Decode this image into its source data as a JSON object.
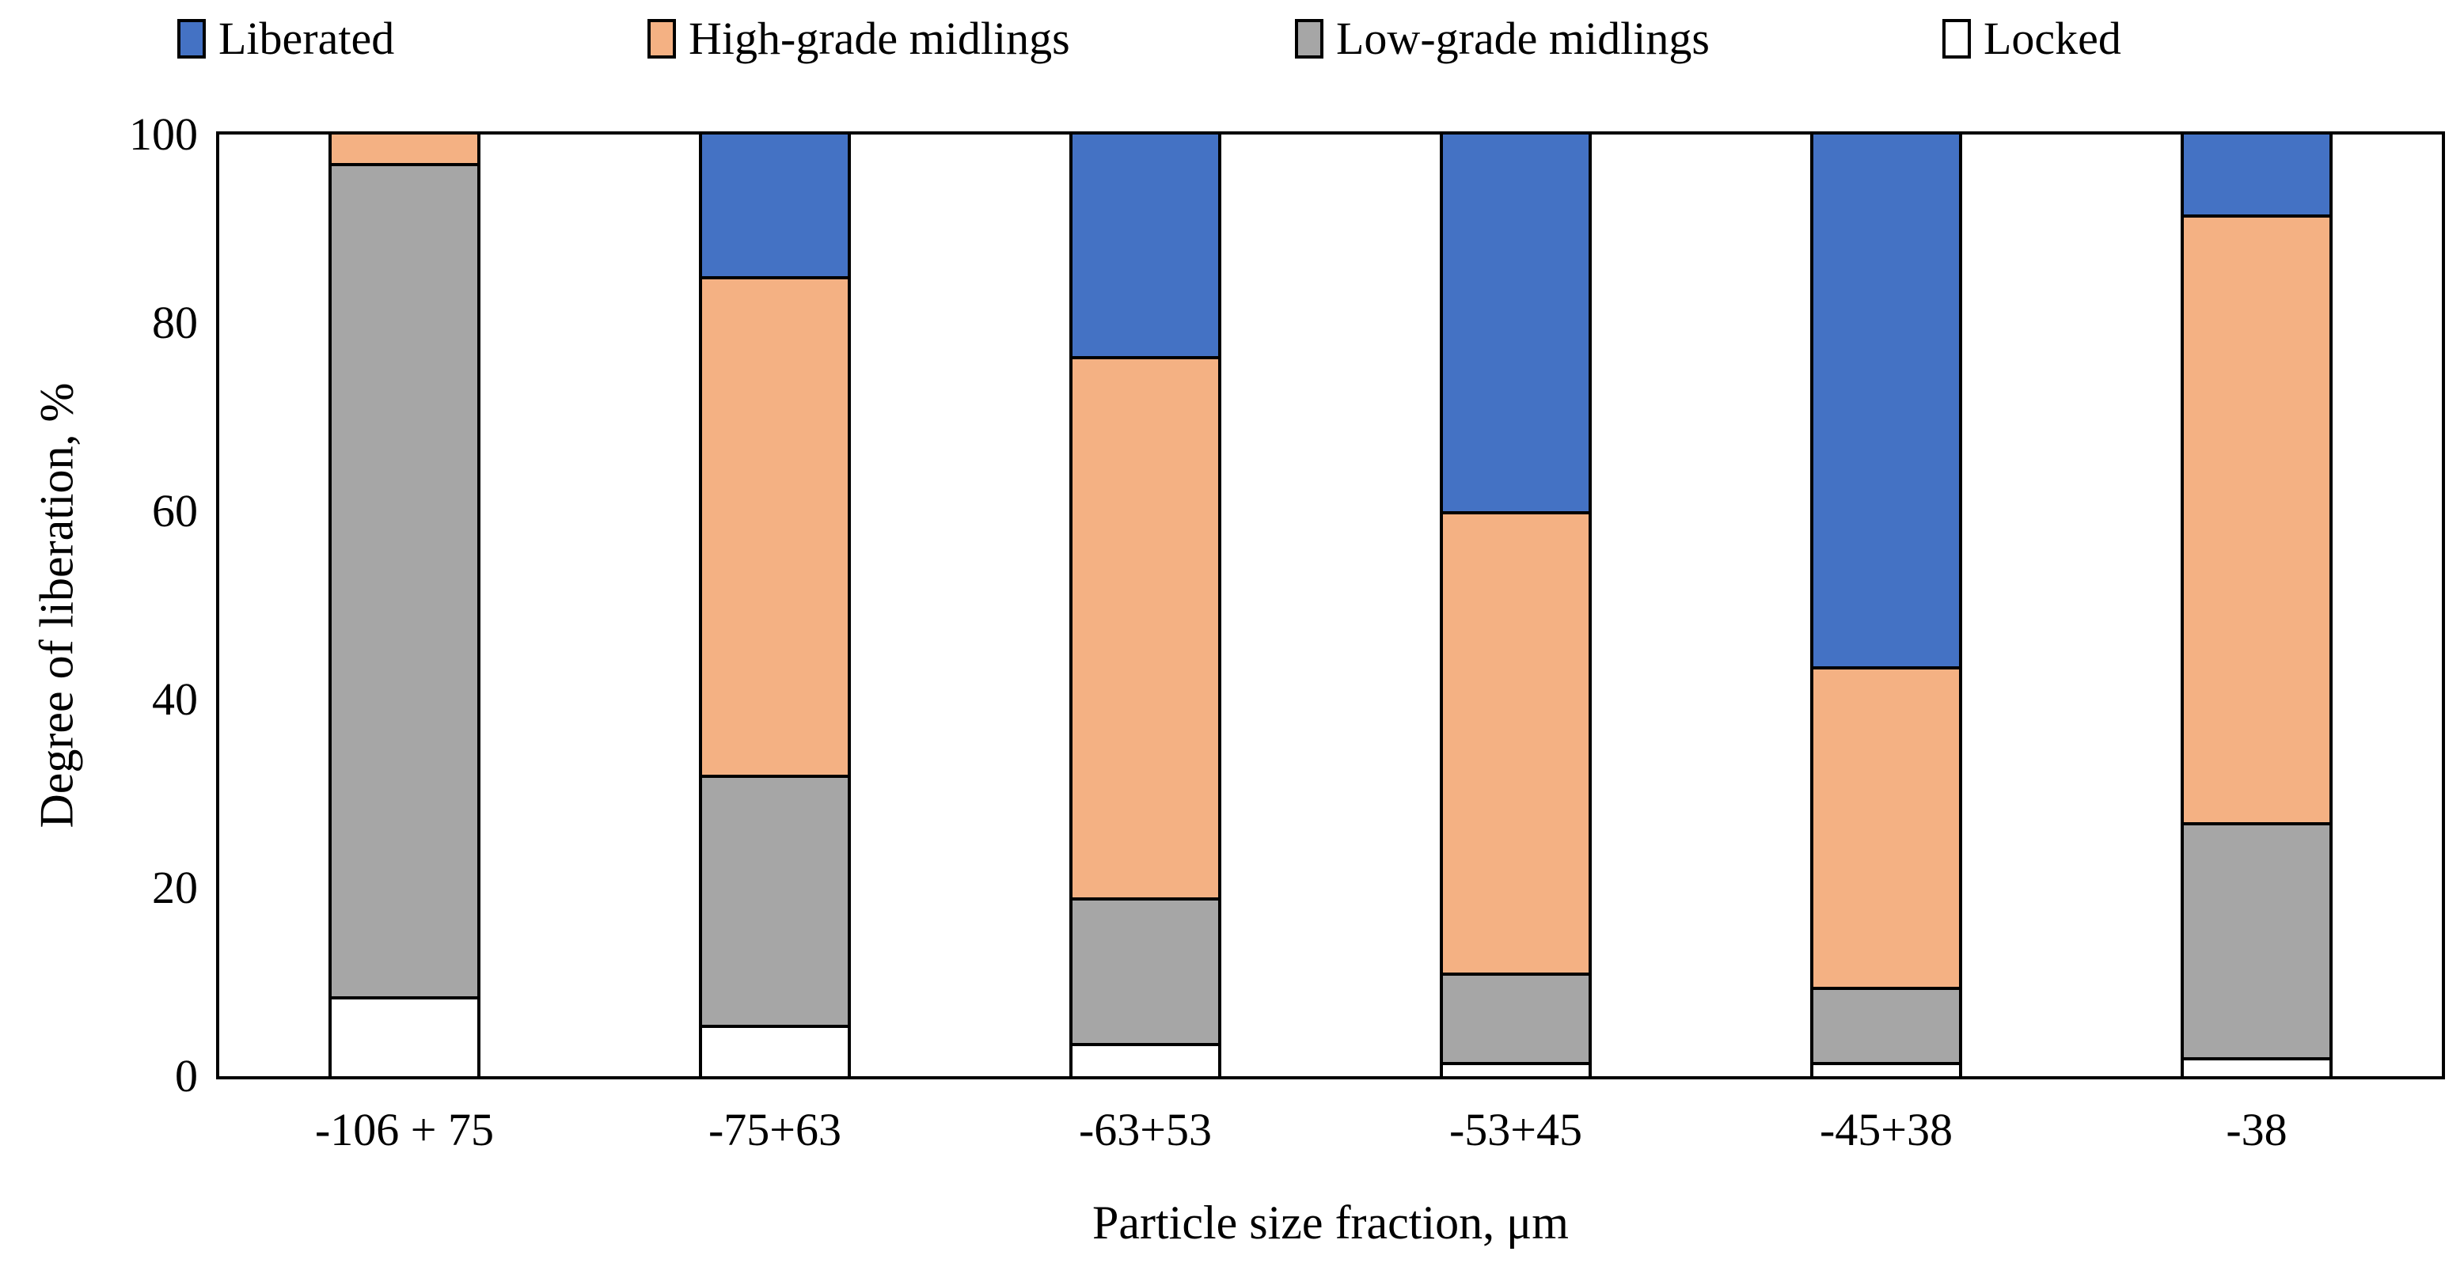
{
  "chart_data": {
    "type": "bar",
    "stacked": true,
    "title": "",
    "xlabel": "Particle size fraction, μm",
    "ylabel": "Degree of liberation, %",
    "ylim": [
      0,
      100
    ],
    "yticks": [
      0,
      20,
      40,
      60,
      80,
      100
    ],
    "grid": false,
    "legend_position": "top",
    "bar_outline_color": "#000000",
    "categories": [
      "-106 + 75",
      "-75+63",
      "-63+53",
      "-53+45",
      "-45+38",
      "-38"
    ],
    "series": [
      {
        "name": "Locked",
        "color": "#FFFFFF",
        "values": [
          8.5,
          5.5,
          3.5,
          1.5,
          1.5,
          2.0
        ]
      },
      {
        "name": "Low-grade midlings",
        "color": "#A6A6A6",
        "values": [
          88.5,
          26.5,
          15.5,
          9.5,
          8.0,
          25.0
        ]
      },
      {
        "name": "High-grade midlings",
        "color": "#F4B183",
        "values": [
          3.0,
          53.0,
          57.5,
          49.0,
          34.0,
          64.5
        ]
      },
      {
        "name": "Liberated",
        "color": "#4472C4",
        "values": [
          0.0,
          15.0,
          23.5,
          40.0,
          56.5,
          8.5
        ]
      }
    ],
    "stack_order": "bottom-to-top",
    "legend": [
      {
        "label": "Liberated",
        "color": "#4472C4"
      },
      {
        "label": "High-grade midlings",
        "color": "#F4B183"
      },
      {
        "label": "Low-grade midlings",
        "color": "#A6A6A6"
      },
      {
        "label": "Locked",
        "color": "#FFFFFF"
      }
    ]
  }
}
